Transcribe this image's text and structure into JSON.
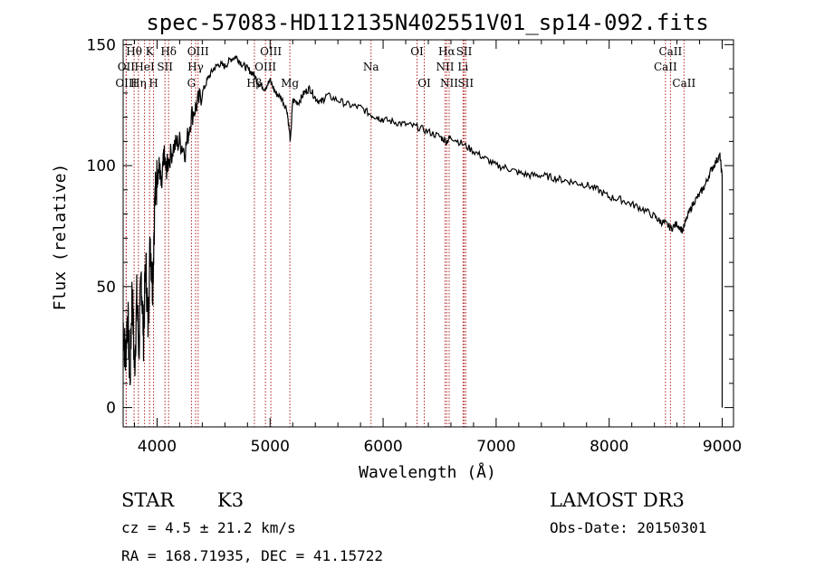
{
  "chart_data": {
    "type": "line",
    "title": "spec-57083-HD112135N402551V01_sp14-092.fits",
    "xlabel": "Wavelength (Å)",
    "ylabel": "Flux (relative)",
    "xlim": [
      3700,
      9100
    ],
    "ylim": [
      -8,
      152
    ],
    "x_ticks": [
      4000,
      5000,
      6000,
      7000,
      8000,
      9000
    ],
    "y_ticks": [
      0,
      50,
      100,
      150
    ],
    "series": [
      {
        "name": "flux",
        "x": [
          3700,
          3720,
          3740,
          3760,
          3780,
          3800,
          3820,
          3840,
          3860,
          3880,
          3900,
          3920,
          3940,
          3960,
          3980,
          4000,
          4020,
          4040,
          4060,
          4080,
          4100,
          4150,
          4200,
          4250,
          4300,
          4350,
          4400,
          4450,
          4500,
          4550,
          4600,
          4650,
          4700,
          4750,
          4800,
          4850,
          4900,
          4950,
          5000,
          5050,
          5100,
          5150,
          5180,
          5200,
          5250,
          5300,
          5350,
          5400,
          5450,
          5500,
          5600,
          5700,
          5800,
          5893,
          5950,
          6000,
          6100,
          6200,
          6300,
          6400,
          6500,
          6563,
          6600,
          6700,
          6800,
          6900,
          7000,
          7100,
          7200,
          7300,
          7400,
          7500,
          7600,
          7700,
          7800,
          7900,
          8000,
          8100,
          8200,
          8300,
          8400,
          8450,
          8500,
          8550,
          8600,
          8650,
          8700,
          8750,
          8800,
          8850,
          8900,
          8950,
          8980,
          9000
        ],
        "y": [
          35,
          20,
          40,
          10,
          50,
          15,
          45,
          25,
          55,
          30,
          60,
          35,
          70,
          50,
          85,
          95,
          100,
          90,
          105,
          98,
          102,
          108,
          110,
          106,
          120,
          125,
          130,
          136,
          140,
          142,
          141,
          144,
          145,
          142,
          140,
          138,
          134,
          132,
          135,
          130,
          128,
          123,
          110,
          127,
          126,
          130,
          132,
          128,
          126,
          129,
          127,
          125,
          124,
          121,
          120,
          119,
          118,
          117,
          116,
          114,
          112,
          110,
          112,
          109,
          106,
          103,
          100,
          99,
          97,
          96,
          96,
          95,
          94,
          93,
          92,
          90,
          87,
          86,
          84,
          82,
          79,
          77,
          76,
          74,
          76,
          73,
          80,
          85,
          88,
          92,
          98,
          102,
          104,
          95
        ]
      }
    ],
    "spectral_lines": [
      {
        "label": "Hθ",
        "x": 3797,
        "row": 1
      },
      {
        "label": "OII",
        "x": 3727,
        "row": 2
      },
      {
        "label": "OIII",
        "x": 3727,
        "row": 3
      },
      {
        "label": "K",
        "x": 3934,
        "row": 1
      },
      {
        "label": "HeI",
        "x": 3889,
        "row": 2
      },
      {
        "label": "Hη",
        "x": 3835,
        "row": 3
      },
      {
        "label": "H",
        "x": 3969,
        "row": 3
      },
      {
        "label": "SII",
        "x": 4070,
        "row": 2
      },
      {
        "label": "Hδ",
        "x": 4102,
        "row": 1
      },
      {
        "label": "OIII",
        "x": 4363,
        "row": 1
      },
      {
        "label": "Hγ",
        "x": 4341,
        "row": 2
      },
      {
        "label": "G",
        "x": 4304,
        "row": 3
      },
      {
        "label": "Hβ",
        "x": 4861,
        "row": 3
      },
      {
        "label": "OIII",
        "x": 5007,
        "row": 1
      },
      {
        "label": "OIII",
        "x": 4959,
        "row": 2
      },
      {
        "label": "Mg",
        "x": 5175,
        "row": 3
      },
      {
        "label": "Na",
        "x": 5893,
        "row": 2
      },
      {
        "label": "OI",
        "x": 6300,
        "row": 1
      },
      {
        "label": "OI",
        "x": 6364,
        "row": 3
      },
      {
        "label": "Hα",
        "x": 6563,
        "row": 1
      },
      {
        "label": "NII",
        "x": 6548,
        "row": 2
      },
      {
        "label": "NII",
        "x": 6584,
        "row": 3
      },
      {
        "label": "SII",
        "x": 6717,
        "row": 1
      },
      {
        "label": "Li",
        "x": 6707,
        "row": 2
      },
      {
        "label": "SII",
        "x": 6731,
        "row": 3
      },
      {
        "label": "CaII",
        "x": 8542,
        "row": 1
      },
      {
        "label": "CaII",
        "x": 8498,
        "row": 2
      },
      {
        "label": "CaII",
        "x": 8662,
        "row": 3
      }
    ]
  },
  "info": {
    "class_label": "STAR",
    "subclass": "K3",
    "survey": "LAMOST DR3",
    "cz": "cz = 4.5 ± 21.2 km/s",
    "obs_date": "Obs-Date: 20150301",
    "coords": "RA = 168.71935, DEC =  41.15722"
  },
  "colors": {
    "line_marker": "#b22222",
    "spectrum": "#000000"
  }
}
